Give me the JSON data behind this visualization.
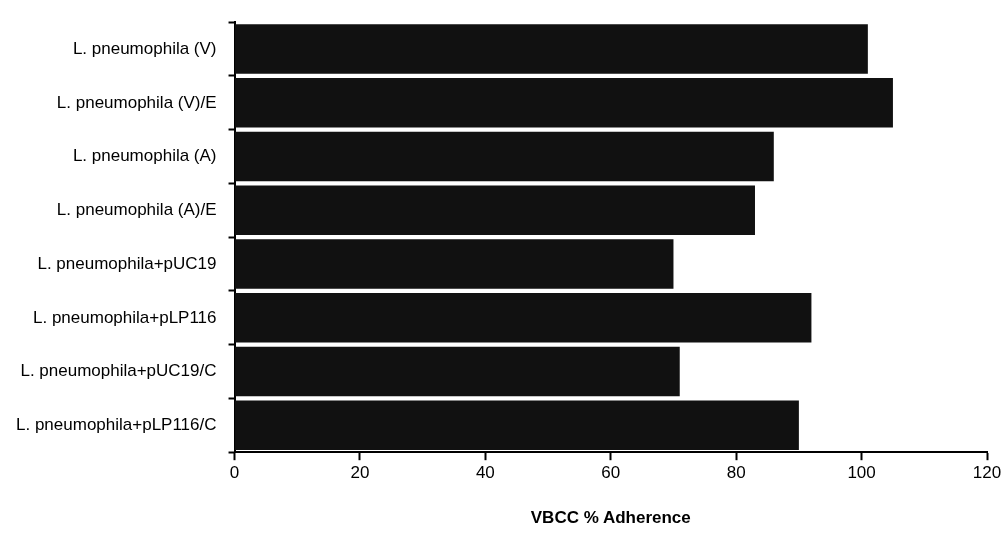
{
  "chart_data": {
    "type": "bar",
    "orientation": "horizontal",
    "xlabel": "VBCC % Adherence",
    "categories": [
      "L. pneumophila (V)",
      "L. pneumophila (V)/E",
      "L. pneumophila (A)",
      "L. pneumophila (A)/E",
      "L. pneumophila+pUC19",
      "L. pneumophila+pLP116",
      "L. pneumophila+pUC19/C",
      "L. pneumophila+pLP116/C"
    ],
    "values": [
      101,
      105,
      86,
      83,
      70,
      92,
      71,
      90
    ],
    "color": "#111111",
    "xlim": [
      0,
      120
    ],
    "xticks": [
      0,
      20,
      40,
      60,
      80,
      100,
      120
    ],
    "grid": false,
    "legend": false
  }
}
